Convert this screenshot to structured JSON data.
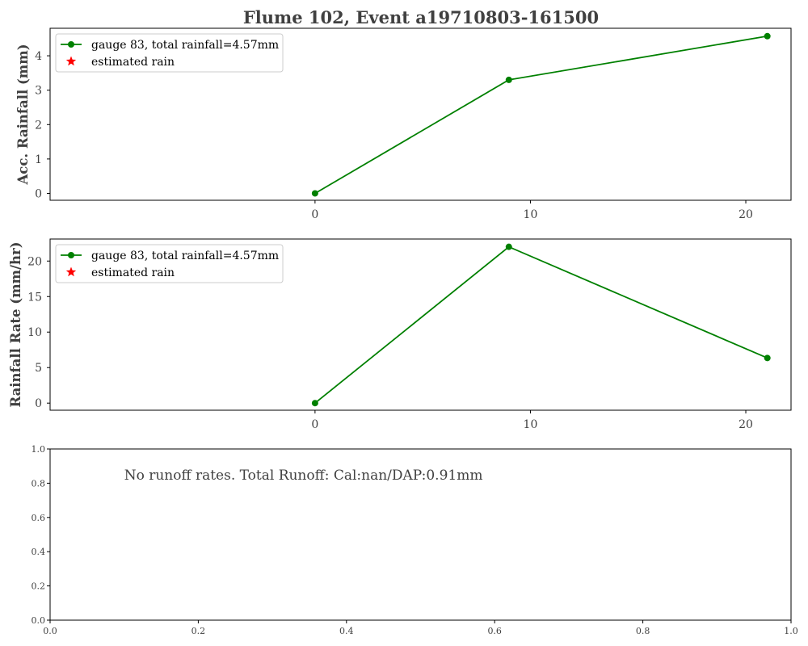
{
  "chart_data": [
    {
      "type": "line",
      "title": "Flume 102, Event a19710803-161500",
      "xlabel": "",
      "ylabel": "Acc. Rainfall (mm)",
      "xlim": [
        -12.3,
        22.1
      ],
      "ylim": [
        -0.2,
        4.8
      ],
      "xticks": [
        0,
        10,
        20
      ],
      "yticks": [
        0,
        1,
        2,
        3,
        4
      ],
      "legend_position": "upper-left",
      "legend": [
        {
          "label": "gauge 83, total rainfall=4.57mm",
          "marker": "circle-line",
          "color": "#008000"
        },
        {
          "label": "estimated rain",
          "marker": "star",
          "color": "#ff0000"
        }
      ],
      "series": [
        {
          "name": "gauge 83, total rainfall=4.57mm",
          "color": "#008000",
          "x": [
            0,
            9,
            21
          ],
          "y": [
            0,
            3.3,
            4.57
          ]
        },
        {
          "name": "estimated rain",
          "color": "#ff0000",
          "x": [],
          "y": []
        }
      ]
    },
    {
      "type": "line",
      "xlabel": "",
      "ylabel": "Rainfall Rate (mm/hr)",
      "xlim": [
        -12.3,
        22.1
      ],
      "ylim": [
        -1.0,
        23.1
      ],
      "xticks": [
        0,
        10,
        20
      ],
      "yticks": [
        0,
        5,
        10,
        15,
        20
      ],
      "legend_position": "upper-left",
      "legend": [
        {
          "label": "gauge 83, total rainfall=4.57mm",
          "marker": "circle-line",
          "color": "#008000"
        },
        {
          "label": "estimated rain",
          "marker": "star",
          "color": "#ff0000"
        }
      ],
      "series": [
        {
          "name": "gauge 83, total rainfall=4.57mm",
          "color": "#008000",
          "x": [
            0,
            9,
            21
          ],
          "y": [
            0,
            22,
            6.35
          ]
        },
        {
          "name": "estimated rain",
          "color": "#ff0000",
          "x": [],
          "y": []
        }
      ]
    },
    {
      "type": "line",
      "xlabel": "",
      "ylabel": "",
      "xlim": [
        0,
        1
      ],
      "ylim": [
        0,
        1
      ],
      "xticks": [
        "0.0",
        "0.2",
        "0.4",
        "0.6",
        "0.8",
        "1.0"
      ],
      "yticks": [
        "0.0",
        "0.2",
        "0.4",
        "0.6",
        "0.8",
        "1.0"
      ],
      "annotation": "No runoff rates. Total Runoff: Cal:nan/DAP:0.91mm",
      "series": []
    }
  ]
}
